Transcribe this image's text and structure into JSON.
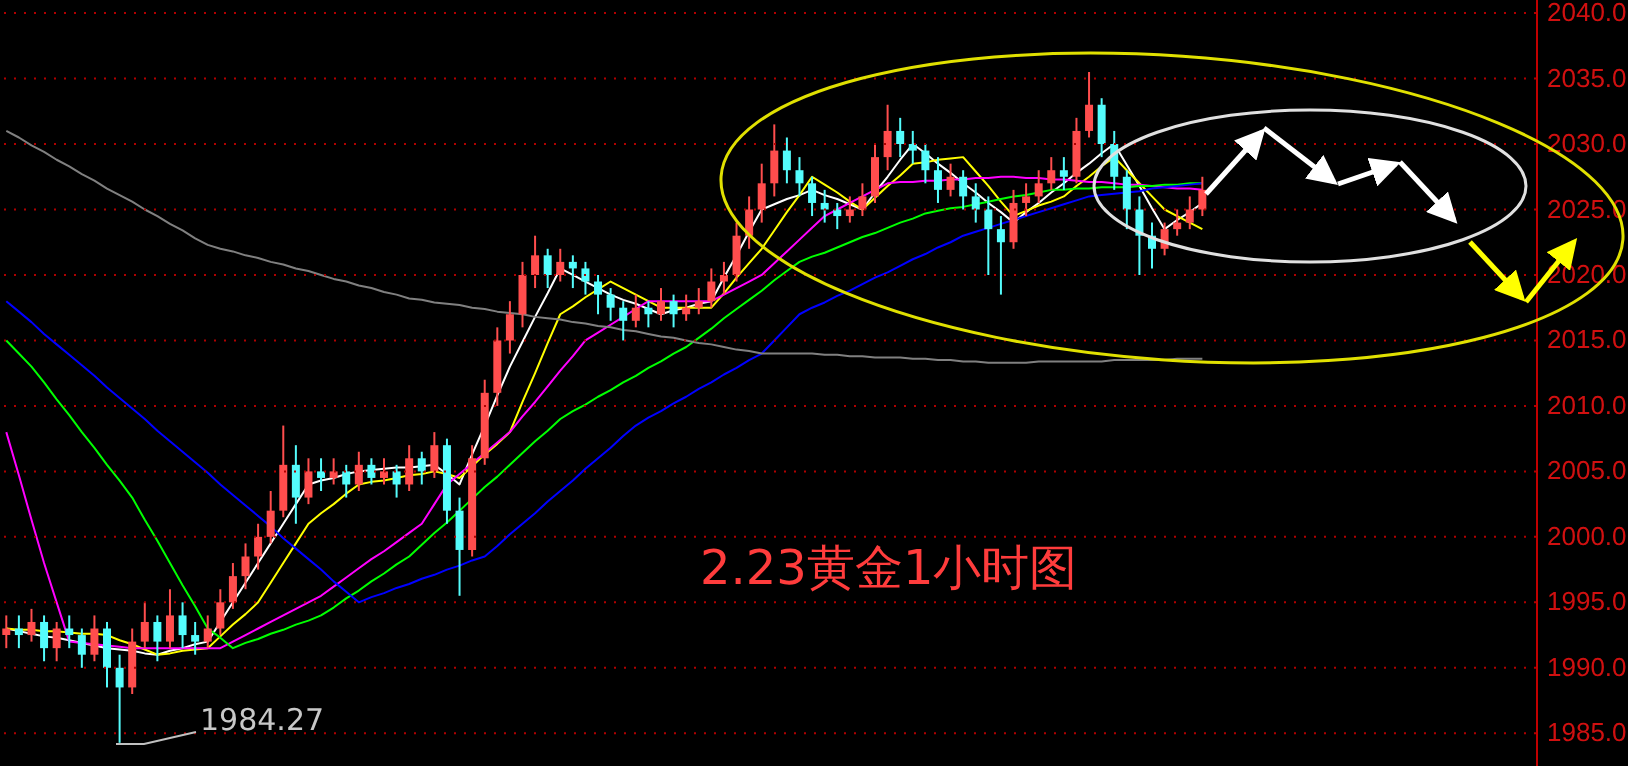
{
  "chart_data": {
    "type": "candlestick",
    "title": "2.23黄金1小时图",
    "annotations": [
      "1984.27"
    ],
    "categories": [
      null,
      null,
      null,
      null,
      null,
      null,
      null,
      null,
      null,
      null,
      null,
      null,
      null,
      null,
      null,
      null,
      null,
      null,
      null,
      null,
      null,
      null,
      null,
      null,
      null,
      null,
      null,
      null,
      null,
      null,
      null,
      null,
      null,
      null,
      null,
      null,
      null,
      null,
      null,
      null,
      null,
      null,
      null,
      null,
      null,
      null,
      null,
      null,
      null,
      null,
      null,
      null,
      null,
      null,
      null,
      null,
      null,
      null,
      null,
      null,
      null,
      null,
      null,
      null,
      null,
      null,
      null,
      null,
      null,
      null,
      null,
      null,
      null,
      null,
      null,
      null,
      null,
      null,
      null,
      null,
      null,
      null,
      null,
      null,
      null,
      null,
      null,
      null,
      null,
      null,
      null,
      null,
      null,
      null,
      null,
      null,
      null,
      null,
      null,
      null,
      null,
      null,
      null,
      null,
      null,
      null,
      null,
      null,
      null,
      null,
      null,
      null,
      null,
      null,
      null,
      null,
      null,
      null,
      null,
      null,
      null,
      null
    ],
    "ylim": [
      1982.5,
      2041
    ],
    "yticks": [
      {
        "value": 1985,
        "label": "1985.0"
      },
      {
        "value": 1990,
        "label": "1990.0"
      },
      {
        "value": 1995,
        "label": "1995.0"
      },
      {
        "value": 2000,
        "label": "2000.0"
      },
      {
        "value": 2005,
        "label": "2005.0"
      },
      {
        "value": 2010,
        "label": "2010.0"
      },
      {
        "value": 2015,
        "label": "2015.0"
      },
      {
        "value": 2020,
        "label": "2020.0"
      },
      {
        "value": 2025,
        "label": "2025.0"
      },
      {
        "value": 2030,
        "label": "2030.0"
      },
      {
        "value": 2035,
        "label": "2035.0"
      },
      {
        "value": 2040,
        "label": "2040.0"
      }
    ],
    "grid": "y",
    "tick_labels": "y",
    "series": [
      {
        "ohlc": [
          [
            1992.5,
            1994,
            1991.5,
            1993
          ],
          [
            1993,
            1994,
            1991.5,
            1992.5
          ],
          [
            1992.5,
            1994.5,
            1992,
            1993.5
          ],
          [
            1993.5,
            1994,
            1990.5,
            1991.5
          ],
          [
            1991.5,
            1993.5,
            1990.5,
            1993
          ],
          [
            1993,
            1994,
            1991.5,
            1992.5
          ],
          [
            1992.5,
            1993,
            1990,
            1991
          ],
          [
            1991,
            1994,
            1990.5,
            1993
          ],
          [
            1993,
            1993.5,
            1988.5,
            1990
          ],
          [
            1990,
            1991,
            1984.27,
            1988.5
          ],
          [
            1988.5,
            1993,
            1988,
            1992
          ],
          [
            1992,
            1995,
            1991.5,
            1993.5
          ],
          [
            1993.5,
            1994,
            1990.5,
            1992
          ],
          [
            1992,
            1996,
            1991.5,
            1994
          ],
          [
            1994,
            1995,
            1991.5,
            1992.5
          ],
          [
            1992.5,
            1993.5,
            1991,
            1992
          ],
          [
            1992,
            1994,
            1991.5,
            1993
          ],
          [
            1993,
            1996,
            1992.5,
            1995
          ],
          [
            1995,
            1998,
            1994.5,
            1997
          ],
          [
            1997,
            1999.5,
            1996,
            1998.5
          ],
          [
            1998.5,
            2001,
            1997.5,
            2000
          ],
          [
            2000,
            2003.5,
            1999.5,
            2002
          ],
          [
            2002,
            2008.5,
            2001.5,
            2005.5
          ],
          [
            2005.5,
            2007,
            2001,
            2003
          ],
          [
            2003,
            2006,
            2002.5,
            2005
          ],
          [
            2005,
            2006,
            2003.5,
            2004.5
          ],
          [
            2004.5,
            2006,
            2004,
            2005
          ],
          [
            2005,
            2005.5,
            2003,
            2004
          ],
          [
            2004,
            2006.5,
            2003.5,
            2005.5
          ],
          [
            2005.5,
            2006,
            2004,
            2004.5
          ],
          [
            2004.5,
            2006,
            2004,
            2005
          ],
          [
            2005,
            2005.5,
            2003,
            2004
          ],
          [
            2004,
            2007,
            2003.5,
            2006
          ],
          [
            2006,
            2006.5,
            2004,
            2005
          ],
          [
            2005,
            2008,
            2004.5,
            2007
          ],
          [
            2007,
            2007.5,
            2001,
            2002
          ],
          [
            2002,
            2003,
            1995.5,
            1999
          ],
          [
            1999,
            2007,
            1998.5,
            2006
          ],
          [
            2006,
            2012,
            2005.5,
            2011
          ],
          [
            2011,
            2016,
            2010,
            2015
          ],
          [
            2015,
            2018,
            2014,
            2017
          ],
          [
            2017,
            2021,
            2016,
            2020
          ],
          [
            2020,
            2023,
            2019,
            2021.5
          ],
          [
            2021.5,
            2022,
            2019,
            2020
          ],
          [
            2020,
            2022,
            2019.5,
            2021
          ],
          [
            2021,
            2021.5,
            2019,
            2020.5
          ],
          [
            2020.5,
            2021,
            2018.5,
            2019.5
          ],
          [
            2019.5,
            2020,
            2017,
            2018.5
          ],
          [
            2018.5,
            2019,
            2016.5,
            2017.5
          ],
          [
            2017.5,
            2018,
            2015,
            2016.5
          ],
          [
            2016.5,
            2018.5,
            2016,
            2017.5
          ],
          [
            2017.5,
            2018,
            2016,
            2017
          ],
          [
            2017,
            2019,
            2016.5,
            2018
          ],
          [
            2018,
            2018.5,
            2016,
            2017
          ],
          [
            2017,
            2018.5,
            2016.5,
            2017.5
          ],
          [
            2017.5,
            2019,
            2017,
            2018
          ],
          [
            2018,
            2020.5,
            2017.5,
            2019.5
          ],
          [
            2019.5,
            2021,
            2018.5,
            2020
          ],
          [
            2020,
            2024,
            2019.5,
            2023
          ],
          [
            2023,
            2026,
            2022,
            2025
          ],
          [
            2025,
            2028.5,
            2024,
            2027
          ],
          [
            2027,
            2031.5,
            2026,
            2029.5
          ],
          [
            2029.5,
            2030.5,
            2027,
            2028
          ],
          [
            2028,
            2029,
            2026,
            2027
          ],
          [
            2027,
            2027.5,
            2024.5,
            2025.5
          ],
          [
            2025.5,
            2026.5,
            2024,
            2025
          ],
          [
            2025,
            2025.5,
            2023.5,
            2024.5
          ],
          [
            2024.5,
            2026,
            2024,
            2025
          ],
          [
            2025,
            2027,
            2024.5,
            2026
          ],
          [
            2026,
            2030,
            2025.5,
            2029
          ],
          [
            2029,
            2033,
            2028,
            2031
          ],
          [
            2031,
            2032,
            2029,
            2030
          ],
          [
            2030,
            2031,
            2028.5,
            2029.5
          ],
          [
            2029.5,
            2030,
            2027,
            2028
          ],
          [
            2028,
            2029,
            2025.5,
            2026.5
          ],
          [
            2026.5,
            2028.5,
            2026,
            2027.5
          ],
          [
            2027.5,
            2028,
            2025,
            2026
          ],
          [
            2026,
            2027,
            2024,
            2025
          ],
          [
            2025,
            2026,
            2020,
            2023.5
          ],
          [
            2023.5,
            2024.5,
            2018.5,
            2022.5
          ],
          [
            2022.5,
            2026.5,
            2022,
            2025.5
          ],
          [
            2025.5,
            2027,
            2024.5,
            2026
          ],
          [
            2026,
            2028,
            2025.5,
            2027
          ],
          [
            2027,
            2029,
            2026.5,
            2028
          ],
          [
            2028,
            2029,
            2026.5,
            2027.5
          ],
          [
            2027.5,
            2032,
            2027,
            2031
          ],
          [
            2031,
            2035.5,
            2030.5,
            2033
          ],
          [
            2033,
            2033.5,
            2029,
            2030
          ],
          [
            2030,
            2031,
            2026.5,
            2027.5
          ],
          [
            2027.5,
            2028,
            2023.5,
            2025
          ],
          [
            2025,
            2026,
            2020,
            2023
          ],
          [
            2023,
            2024,
            2020.5,
            2022
          ],
          [
            2022,
            2024,
            2021.5,
            2023.5
          ],
          [
            2023.5,
            2025,
            2023,
            2024
          ],
          [
            2024,
            2026,
            2023.5,
            2025
          ],
          [
            2025,
            2027.5,
            2024.5,
            2026.5
          ],
          null,
          null,
          null,
          null,
          null,
          null,
          null,
          null,
          null,
          null,
          null,
          null,
          null,
          null,
          null,
          null,
          null,
          null,
          null,
          null,
          null,
          null,
          null,
          null,
          null,
          null
        ]
      },
      {
        "type": "line",
        "color": "#ffffff",
        "values": [
          1993,
          1992.8,
          1992.6,
          1992.4,
          1992.3,
          1992.1,
          1991.9,
          1991.7,
          1991.5,
          1991.4,
          1991.3,
          1991.1,
          1991,
          1991.3,
          1991.5,
          1991.8,
          1992,
          1993.5,
          1995,
          1996.5,
          1998,
          1999.5,
          2001,
          2002.5,
          2004,
          2004.3,
          2004.5,
          2004.8,
          2005,
          2005.1,
          2005.2,
          2005.3,
          2005.3,
          2005.4,
          2005.5,
          2004.8,
          2004,
          2006.3,
          2008.5,
          2010.8,
          2013,
          2014.9,
          2016.8,
          2018.6,
          2020.5,
          2020,
          2019.5,
          2019,
          2018.5,
          2018.1,
          2017.8,
          2017.4,
          2017,
          2017.3,
          2017.5,
          2017.8,
          2018,
          2019.8,
          2021.5,
          2023.3,
          2025,
          2025.4,
          2025.8,
          2026.1,
          2026.5,
          2026.1,
          2025.8,
          2025.4,
          2025,
          2026.3,
          2027.5,
          2028.8,
          2030,
          2029.3,
          2028.5,
          2027.8,
          2027,
          2026.3,
          2025.5,
          2024.8,
          2024,
          2024.8,
          2025.5,
          2026.3,
          2027,
          2027.8,
          2028.5,
          2029.3,
          2030,
          2028.4,
          2026.8,
          2025.1,
          2023.5,
          2024.2,
          2024.8,
          2025.5,
          null,
          null,
          null,
          null,
          null,
          null,
          null,
          null,
          null,
          null,
          null,
          null,
          null,
          null,
          null,
          null,
          null,
          null,
          null,
          null,
          null,
          null,
          null,
          null,
          null,
          null
        ]
      },
      {
        "type": "line",
        "color": "#ffff00",
        "values": [
          1993,
          1992.9,
          1992.9,
          1992.8,
          1992.8,
          1992.7,
          1992.6,
          1992.6,
          1992.5,
          1992.1,
          1991.8,
          1991.4,
          1991,
          1991.1,
          1991.3,
          1991.4,
          1991.5,
          1992.4,
          1993.3,
          1994.1,
          1995,
          1996.5,
          1998,
          1999.5,
          2001,
          2001.8,
          2002.5,
          2003.3,
          2004,
          2004.2,
          2004.3,
          2004.5,
          2004.7,
          2004.8,
          2005,
          2004.8,
          2004.5,
          2005.4,
          2006.3,
          2007.1,
          2008,
          2010.3,
          2012.5,
          2014.8,
          2017,
          2017.6,
          2018.3,
          2018.9,
          2019.5,
          2019,
          2018.5,
          2018,
          2017.5,
          2017.5,
          2017.5,
          2017.5,
          2017.5,
          2018.6,
          2019.8,
          2020.9,
          2022,
          2023.4,
          2024.8,
          2026.1,
          2027.5,
          2026.9,
          2026.3,
          2025.6,
          2025,
          2025.9,
          2026.8,
          2027.6,
          2028.5,
          2028.6,
          2028.8,
          2028.9,
          2029,
          2027.9,
          2026.8,
          2025.6,
          2024.5,
          2024.9,
          2025.3,
          2025.6,
          2026,
          2026.8,
          2027.5,
          2028.3,
          2029,
          2028,
          2027,
          2026,
          2025,
          2024.5,
          2024,
          2023.5,
          null,
          null,
          null,
          null,
          null,
          null,
          null,
          null,
          null,
          null,
          null,
          null,
          null,
          null,
          null,
          null,
          null,
          null,
          null,
          null,
          null,
          null,
          null,
          null,
          null,
          null
        ]
      },
      {
        "type": "line",
        "color": "#ff00ff",
        "values": [
          2008,
          2004.7,
          2001.3,
          1998,
          1995,
          1992,
          1991.9,
          1991.8,
          1991.7,
          1991.6,
          1991.5,
          1991.5,
          1991.5,
          1991.5,
          1991.5,
          1991.5,
          1991.5,
          1991.5,
          1992,
          1992.5,
          1993,
          1993.5,
          1994,
          1994.5,
          1995,
          1995.5,
          1996.2,
          1996.9,
          1997.6,
          1998.3,
          1998.9,
          1999.6,
          2000.3,
          2001,
          2002.5,
          2004,
          2004.8,
          2005.6,
          2006.4,
          2007.2,
          2008,
          2009.2,
          2010.3,
          2011.5,
          2012.7,
          2013.8,
          2015,
          2015.6,
          2016.2,
          2016.8,
          2017.4,
          2018,
          2018,
          2018,
          2018,
          2018,
          2018,
          2018.5,
          2019,
          2019.5,
          2020,
          2020.9,
          2021.8,
          2022.7,
          2023.6,
          2024.5,
          2025,
          2025.5,
          2026,
          2026.5,
          2027,
          2027.1,
          2027.1,
          2027.2,
          2027.2,
          2027.3,
          2027.3,
          2027.4,
          2027.4,
          2027.5,
          2027.5,
          2027.4,
          2027.4,
          2027.3,
          2027.3,
          2027.2,
          2027.1,
          2027.1,
          2027,
          2026.9,
          2026.9,
          2026.8,
          2026.7,
          2026.6,
          2026.6,
          2026.5,
          null,
          null,
          null,
          null,
          null,
          null,
          null,
          null,
          null,
          null,
          null,
          null,
          null,
          null,
          null,
          null,
          null,
          null,
          null,
          null,
          null,
          null,
          null,
          null,
          null,
          null
        ]
      },
      {
        "type": "line",
        "color": "#00ff00",
        "values": [
          2015,
          2014,
          2013,
          2011.8,
          2010.5,
          2009.3,
          2008,
          2006.8,
          2005.5,
          2004.3,
          2003,
          2001.3,
          1999.7,
          1998,
          1996.3,
          1994.7,
          1993,
          1992.3,
          1991.5,
          1991.9,
          1992.2,
          1992.6,
          1992.9,
          1993.3,
          1993.6,
          1994,
          1994.6,
          1995.3,
          1995.9,
          1996.6,
          1997.2,
          1997.9,
          1998.5,
          1999.4,
          2000.3,
          2001.1,
          2002,
          2002.9,
          2003.8,
          2004.6,
          2005.5,
          2006.4,
          2007.3,
          2008.1,
          2009,
          2009.6,
          2010.1,
          2010.7,
          2011.2,
          2011.8,
          2012.3,
          2012.9,
          2013.4,
          2014,
          2014.5,
          2015.2,
          2015.9,
          2016.7,
          2017.4,
          2018.1,
          2018.8,
          2019.6,
          2020.3,
          2021,
          2021.4,
          2021.7,
          2022.1,
          2022.5,
          2022.9,
          2023.2,
          2023.6,
          2024,
          2024.3,
          2024.7,
          2024.9,
          2025.1,
          2025.2,
          2025.4,
          2025.6,
          2025.8,
          2026,
          2026.1,
          2026.3,
          2026.5,
          2026.5,
          2026.6,
          2026.6,
          2026.7,
          2026.7,
          2026.7,
          2026.8,
          2026.8,
          2026.9,
          2026.9,
          2027,
          2027,
          null,
          null,
          null,
          null,
          null,
          null,
          null,
          null,
          null,
          null,
          null,
          null,
          null,
          null,
          null,
          null,
          null,
          null,
          null,
          null,
          null,
          null,
          null,
          null,
          null,
          null
        ]
      },
      {
        "type": "line",
        "color": "#0000ff",
        "values": [
          2018,
          2017.2,
          2016.4,
          2015.5,
          2014.7,
          2013.9,
          2013.1,
          2012.3,
          2011.4,
          2010.6,
          2009.8,
          2009,
          2008.1,
          2007.3,
          2006.5,
          2005.7,
          2004.9,
          2004,
          2003.2,
          2002.4,
          2001.6,
          2000.8,
          1999.9,
          1999.1,
          1998.3,
          1997.5,
          1996.6,
          1995.8,
          1995,
          1995.4,
          1995.7,
          1996.1,
          1996.4,
          1996.8,
          1997.1,
          1997.5,
          1997.8,
          1998.2,
          1998.5,
          1999.3,
          2000.2,
          2001,
          2001.8,
          2002.7,
          2003.5,
          2004.3,
          2005.2,
          2006,
          2006.8,
          2007.7,
          2008.5,
          2009.1,
          2009.6,
          2010.2,
          2010.7,
          2011.3,
          2011.8,
          2012.4,
          2012.9,
          2013.5,
          2014,
          2015,
          2016,
          2017,
          2017.5,
          2017.9,
          2018.4,
          2018.8,
          2019.3,
          2019.8,
          2020.2,
          2020.7,
          2021.2,
          2021.6,
          2022.1,
          2022.5,
          2023,
          2023.3,
          2023.6,
          2023.9,
          2024.2,
          2024.5,
          2024.8,
          2025.1,
          2025.4,
          2025.7,
          2026,
          2026.1,
          2026.2,
          2026.3,
          2026.4,
          2026.6,
          2026.7,
          2026.8,
          2026.9,
          2027,
          null,
          null,
          null,
          null,
          null,
          null,
          null,
          null,
          null,
          null,
          null,
          null,
          null,
          null,
          null,
          null,
          null,
          null,
          null,
          null,
          null,
          null,
          null,
          null,
          null,
          null
        ]
      },
      {
        "type": "line",
        "color": "#808080",
        "values": [
          2031,
          2030.5,
          2029.9,
          2029.4,
          2028.8,
          2028.3,
          2027.7,
          2027.2,
          2026.6,
          2026.1,
          2025.6,
          2025,
          2024.5,
          2023.9,
          2023.4,
          2022.8,
          2022.3,
          2022,
          2021.8,
          2021.5,
          2021.3,
          2021,
          2020.8,
          2020.5,
          2020.3,
          2020,
          2019.7,
          2019.5,
          2019.2,
          2019,
          2018.7,
          2018.5,
          2018.2,
          2018.1,
          2017.9,
          2017.8,
          2017.7,
          2017.5,
          2017.4,
          2017.2,
          2017.1,
          2017,
          2016.8,
          2016.7,
          2016.6,
          2016.4,
          2016.3,
          2016.1,
          2016,
          2015.8,
          2015.7,
          2015.5,
          2015.3,
          2015.2,
          2015,
          2014.8,
          2014.7,
          2014.5,
          2014.3,
          2014.2,
          2014,
          2014,
          2014,
          2014,
          2014,
          2013.9,
          2013.9,
          2013.8,
          2013.8,
          2013.7,
          2013.7,
          2013.7,
          2013.6,
          2013.6,
          2013.5,
          2013.5,
          2013.4,
          2013.4,
          2013.3,
          2013.3,
          2013.3,
          2013.3,
          2013.4,
          2013.4,
          2013.4,
          2013.4,
          2013.4,
          2013.4,
          2013.5,
          2013.5,
          2013.5,
          2013.5,
          2013.5,
          2013.6,
          2013.6,
          2013.6,
          null,
          null,
          null,
          null,
          null,
          null,
          null,
          null,
          null,
          null,
          null,
          null,
          null,
          null,
          null,
          null,
          null,
          null,
          null,
          null,
          null,
          null,
          null,
          null,
          null,
          null
        ]
      }
    ]
  }
}
